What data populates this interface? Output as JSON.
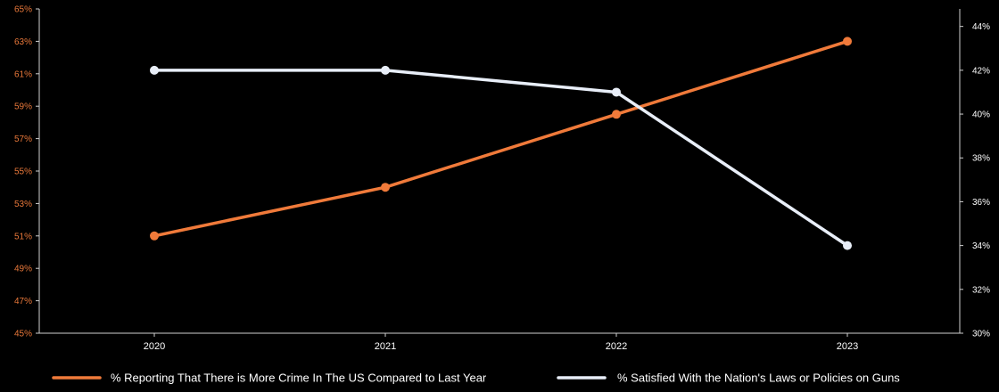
{
  "chart_data": {
    "type": "line",
    "title": "",
    "xlabel": "",
    "ylabel_left": "",
    "ylabel_right": "",
    "categories": [
      "2020",
      "2021",
      "2022",
      "2023"
    ],
    "left_axis": {
      "min": 45,
      "max": 65,
      "ticks": [
        "45%",
        "47%",
        "49%",
        "51%",
        "53%",
        "55%",
        "57%",
        "59%",
        "61%",
        "63%",
        "65%"
      ],
      "tick_values": [
        45,
        47,
        49,
        51,
        53,
        55,
        57,
        59,
        61,
        63,
        65
      ],
      "color": "#e9783a"
    },
    "right_axis": {
      "min": 30,
      "max": 44.8,
      "ticks": [
        "30%",
        "32%",
        "34%",
        "36%",
        "38%",
        "40%",
        "42%",
        "44%"
      ],
      "tick_values": [
        30,
        32,
        34,
        36,
        38,
        40,
        42,
        44
      ],
      "color": "#ffffff"
    },
    "grid": false,
    "legend_position": "bottom",
    "series": [
      {
        "name": "% Reporting That There is More Crime In The US Compared to Last Year",
        "axis": "left",
        "values": [
          51,
          54,
          58.5,
          63
        ],
        "color": "#f07a3a"
      },
      {
        "name": "% Satisfied With the Nation's Laws or Policies on Guns",
        "axis": "right",
        "values": [
          42,
          42,
          41,
          34
        ],
        "color": "#e8eef8"
      }
    ]
  }
}
